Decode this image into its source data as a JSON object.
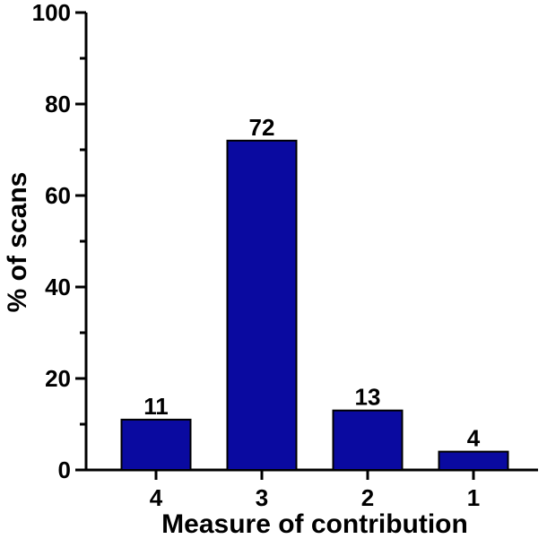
{
  "chart_data": {
    "type": "bar",
    "categories": [
      "4",
      "3",
      "2",
      "1"
    ],
    "values": [
      11,
      72,
      13,
      4
    ],
    "data_labels": [
      "11",
      "72",
      "13",
      "4"
    ],
    "xlabel": "Measure of contribution",
    "ylabel": "% of scans",
    "ylim": [
      0,
      100
    ],
    "yticks": [
      "0",
      "20",
      "40",
      "60",
      "80",
      "100"
    ],
    "grid": false,
    "bar_color": "#0a0aa0",
    "bar_edge_color": "#000000"
  }
}
